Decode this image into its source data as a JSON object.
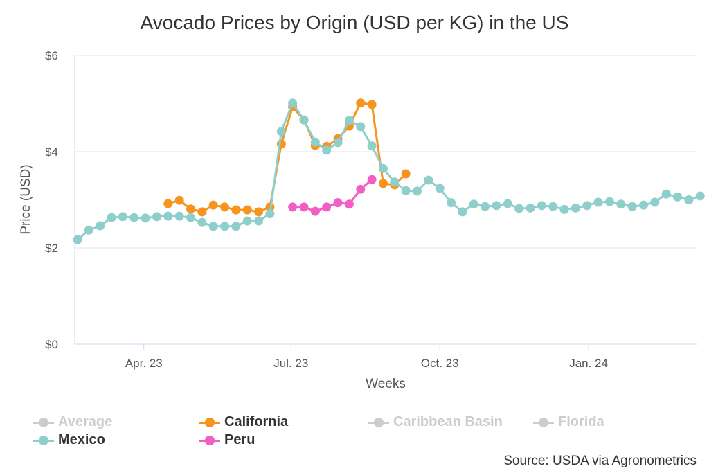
{
  "chart_data": {
    "type": "line",
    "title": "Avocado Prices by Origin (USD per KG) in the US",
    "xlabel": "Weeks",
    "ylabel": "Price (USD)",
    "ylim": [
      0,
      6
    ],
    "yticks": [
      "$0",
      "$2",
      "$4",
      "$6"
    ],
    "ytick_values": [
      0,
      2,
      4,
      6
    ],
    "xticks": [
      {
        "label": "Apr. 23",
        "date": "2023-04-01"
      },
      {
        "label": "Jul. 23",
        "date": "2023-07-01"
      },
      {
        "label": "Oct. 23",
        "date": "2023-10-01"
      },
      {
        "label": "Jan. 24",
        "date": "2024-01-01"
      }
    ],
    "x_start": "2023-02-19",
    "x_interval": "weekly",
    "grid": "horizontal",
    "legend_placement": "bottom",
    "series": [
      {
        "name": "Average",
        "color": "#cccccc",
        "visible": false,
        "values": []
      },
      {
        "name": "California",
        "color": "#f7941d",
        "visible": true,
        "values": [
          null,
          null,
          null,
          null,
          null,
          null,
          null,
          null,
          2.92,
          2.99,
          2.81,
          2.75,
          2.89,
          2.85,
          2.79,
          2.79,
          2.75,
          2.85,
          4.16,
          4.93,
          4.66,
          4.13,
          4.11,
          4.27,
          4.53,
          5.01,
          4.98,
          3.34,
          3.31,
          3.54
        ]
      },
      {
        "name": "Caribbean Basin",
        "color": "#cccccc",
        "visible": false,
        "values": []
      },
      {
        "name": "Florida",
        "color": "#cccccc",
        "visible": false,
        "values": []
      },
      {
        "name": "Mexico",
        "color": "#8ecfcc",
        "visible": true,
        "values": [
          2.17,
          2.37,
          2.46,
          2.63,
          2.65,
          2.63,
          2.62,
          2.65,
          2.66,
          2.66,
          2.63,
          2.53,
          2.45,
          2.45,
          2.45,
          2.56,
          2.56,
          2.71,
          4.42,
          5.01,
          4.66,
          4.2,
          4.03,
          4.19,
          4.65,
          4.52,
          4.12,
          3.65,
          3.37,
          3.19,
          3.18,
          3.41,
          3.24,
          2.94,
          2.75,
          2.91,
          2.86,
          2.88,
          2.92,
          2.82,
          2.83,
          2.88,
          2.86,
          2.8,
          2.83,
          2.88,
          2.95,
          2.96,
          2.91,
          2.86,
          2.89,
          2.95,
          3.12,
          3.06,
          3.0,
          3.08
        ]
      },
      {
        "name": "Peru",
        "color": "#f25fc4",
        "visible": true,
        "values": [
          null,
          null,
          null,
          null,
          null,
          null,
          null,
          null,
          null,
          null,
          null,
          null,
          null,
          null,
          null,
          null,
          null,
          null,
          null,
          2.85,
          2.85,
          2.76,
          2.85,
          2.94,
          2.91,
          3.22,
          3.42
        ]
      }
    ],
    "source": "Source: USDA via Agronometrics"
  }
}
